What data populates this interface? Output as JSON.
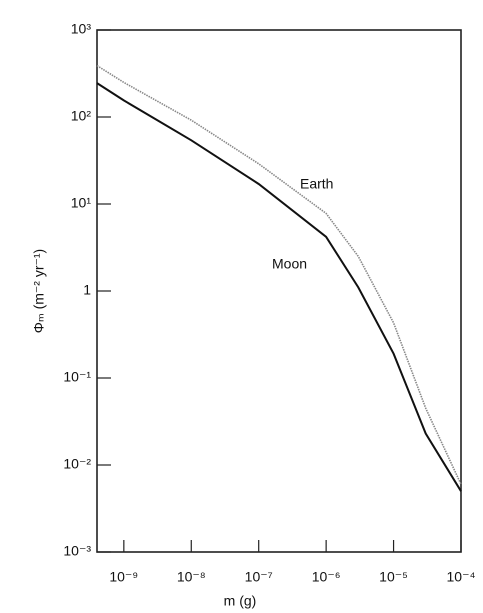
{
  "chart_data": {
    "type": "line",
    "x_label": "m (g)",
    "y_label": "Φₘ (m⁻² yr⁻¹)",
    "log_x": true,
    "log_y": true,
    "x": [
      4e-10,
      1e-09,
      1e-08,
      1e-07,
      1e-06,
      3e-06,
      1e-05,
      3e-05,
      0.0001
    ],
    "series": [
      {
        "name": "Earth",
        "color": "#888888",
        "values": [
          390,
          250,
          92,
          29,
          7.8,
          2.5,
          0.43,
          0.045,
          0.006
        ]
      },
      {
        "name": "Moon",
        "color": "#111111",
        "values": [
          245,
          155,
          54,
          17,
          4.2,
          1.1,
          0.19,
          0.023,
          0.005
        ]
      }
    ],
    "xlim": [
      4e-10,
      0.0001
    ],
    "ylim": [
      0.001,
      1000
    ],
    "xticks": [
      {
        "value": 1e-09,
        "label": "10⁻⁹"
      },
      {
        "value": 1e-08,
        "label": "10⁻⁸"
      },
      {
        "value": 1e-07,
        "label": "10⁻⁷"
      },
      {
        "value": 1e-06,
        "label": "10⁻⁶"
      },
      {
        "value": 1e-05,
        "label": "10⁻⁵"
      },
      {
        "value": 0.0001,
        "label": "10⁻⁴"
      }
    ],
    "yticks": [
      {
        "value": 0.001,
        "label": "10⁻³"
      },
      {
        "value": 0.01,
        "label": "10⁻²"
      },
      {
        "value": 0.1,
        "label": "10⁻¹"
      },
      1,
      {
        "value": 10,
        "label": "10¹"
      },
      {
        "value": 100,
        "label": "10²"
      },
      {
        "value": 1000,
        "label": "10³"
      }
    ],
    "grid": false
  }
}
